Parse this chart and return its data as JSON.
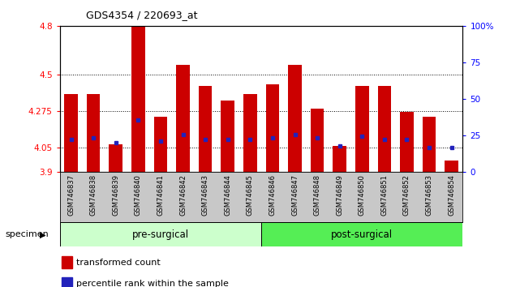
{
  "title": "GDS4354 / 220693_at",
  "samples": [
    "GSM746837",
    "GSM746838",
    "GSM746839",
    "GSM746840",
    "GSM746841",
    "GSM746842",
    "GSM746843",
    "GSM746844",
    "GSM746845",
    "GSM746846",
    "GSM746847",
    "GSM746848",
    "GSM746849",
    "GSM746850",
    "GSM746851",
    "GSM746852",
    "GSM746853",
    "GSM746854"
  ],
  "red_values": [
    4.38,
    4.38,
    4.07,
    4.8,
    4.24,
    4.56,
    4.43,
    4.34,
    4.38,
    4.44,
    4.56,
    4.29,
    4.06,
    4.43,
    4.43,
    4.27,
    4.24,
    3.97
  ],
  "blue_values": [
    4.1,
    4.11,
    4.08,
    4.22,
    4.09,
    4.13,
    4.1,
    4.1,
    4.1,
    4.11,
    4.13,
    4.11,
    4.06,
    4.12,
    4.1,
    4.1,
    4.05,
    4.05
  ],
  "ymin": 3.9,
  "ymax": 4.8,
  "yticks": [
    3.9,
    4.05,
    4.275,
    4.5,
    4.8
  ],
  "ytick_labels": [
    "3.9",
    "4.05",
    "4.275",
    "4.5",
    "4.8"
  ],
  "y2min": 0,
  "y2max": 100,
  "y2ticks": [
    0,
    25,
    50,
    75,
    100
  ],
  "y2tick_labels": [
    "0",
    "25",
    "50",
    "75",
    "100%"
  ],
  "pre_surgical_count": 9,
  "post_surgical_count": 9,
  "bar_color": "#cc0000",
  "blue_color": "#2222bb",
  "pre_color": "#ccffcc",
  "post_color": "#55ee55",
  "specimen_label": "specimen",
  "pre_label": "pre-surgical",
  "post_label": "post-surgical",
  "legend_red_label": "transformed count",
  "legend_blue_label": "percentile rank within the sample",
  "bg_color": "#ffffff",
  "xtick_area_color": "#c8c8c8"
}
